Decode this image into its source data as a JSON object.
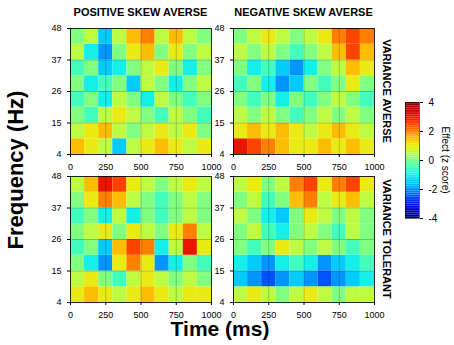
{
  "chart_data": {
    "type": "heatmap",
    "x_label": "Time (ms)",
    "y_label": "Frequency (Hz)",
    "columns": [
      "POSITIVE SKEW AVERSE",
      "NEGATIVE SKEW AVERSE"
    ],
    "rows": [
      "VARIANCE AVERSE",
      "VARIANCE TOLERANT"
    ],
    "xlim": [
      0,
      1000
    ],
    "xticks": [
      0,
      250,
      500,
      750,
      1000
    ],
    "ylim": [
      4,
      48
    ],
    "yticks": [
      4,
      15,
      26,
      37,
      48
    ],
    "grid": true,
    "color": "jet",
    "time_bins": [
      0,
      100,
      200,
      300,
      400,
      500,
      600,
      700,
      800,
      900,
      1000
    ],
    "frequency_bins": [
      4,
      9.5,
      15,
      20.5,
      26,
      31.5,
      37,
      42.5,
      48
    ],
    "colorbar": {
      "label": "Effect (z score)",
      "range": [
        -4,
        4
      ],
      "ticks": [
        4,
        2,
        0,
        -2,
        -4
      ]
    },
    "panels": [
      {
        "row": "VARIANCE AVERSE",
        "column": "POSITIVE SKEW AVERSE",
        "cells": [
          [
            1.5,
            1,
            0.5,
            -1.5,
            0.5,
            1,
            1.5,
            1,
            0.5,
            1
          ],
          [
            0.5,
            1,
            1.5,
            0.5,
            0,
            0.5,
            1,
            0.5,
            1,
            0
          ],
          [
            0,
            -0.5,
            0.5,
            1,
            0.5,
            0,
            -0.5,
            0.5,
            0,
            -0.5
          ],
          [
            -0.5,
            0,
            -1,
            0.5,
            0,
            -1,
            0.5,
            0,
            -0.5,
            0
          ],
          [
            0,
            -1,
            -0.5,
            0,
            -1.5,
            0.5,
            0,
            -1,
            0,
            0.5
          ],
          [
            -0.5,
            0,
            -1.5,
            -1,
            0,
            0.5,
            1,
            0,
            -1,
            0
          ],
          [
            0.5,
            -1,
            -2,
            0,
            1,
            1.5,
            0,
            1,
            0,
            0.5
          ],
          [
            0,
            0.5,
            -1.5,
            0.5,
            1.5,
            2,
            0.5,
            1.5,
            0.5,
            0
          ]
        ]
      },
      {
        "row": "VARIANCE AVERSE",
        "column": "NEGATIVE SKEW AVERSE",
        "cells": [
          [
            3,
            2.5,
            2,
            1.5,
            1,
            1,
            1.5,
            1,
            1.5,
            1
          ],
          [
            1,
            1.5,
            1,
            1.5,
            1,
            0.5,
            1,
            1.5,
            1,
            0.5
          ],
          [
            0.5,
            0,
            0.5,
            0,
            -0.5,
            0,
            0.5,
            0,
            0.5,
            0
          ],
          [
            0,
            -0.5,
            0,
            -1,
            0,
            -0.5,
            0,
            0.5,
            0,
            -0.5
          ],
          [
            -0.5,
            0,
            -1,
            -2,
            -1.5,
            0,
            -0.5,
            0,
            1,
            0
          ],
          [
            0,
            -1,
            -0.5,
            -1.5,
            -2,
            -1,
            0,
            0.5,
            1.5,
            1
          ],
          [
            0.5,
            0,
            0.5,
            0,
            -0.5,
            0,
            0.5,
            1.5,
            2.5,
            1.5
          ],
          [
            0,
            0.5,
            1,
            0.5,
            0,
            0.5,
            1,
            2,
            2.5,
            2
          ]
        ]
      },
      {
        "row": "VARIANCE TOLERANT",
        "column": "POSITIVE SKEW AVERSE",
        "cells": [
          [
            1,
            1.5,
            1,
            0.5,
            1,
            1.5,
            1,
            0.5,
            1,
            1
          ],
          [
            0.5,
            1,
            0,
            -0.5,
            0.5,
            1,
            0.5,
            0,
            0.5,
            0
          ],
          [
            0,
            -1,
            -2,
            1,
            2,
            1,
            -2,
            -1,
            0,
            -0.5
          ],
          [
            -0.5,
            0,
            -1.5,
            1.5,
            2.5,
            2,
            -1,
            0.5,
            3,
            1
          ],
          [
            0,
            0.5,
            1,
            0,
            1,
            0.5,
            0,
            1,
            2,
            0.5
          ],
          [
            -0.5,
            0,
            -1,
            0.5,
            -1,
            0,
            -0.5,
            0,
            0.5,
            0
          ],
          [
            0,
            1,
            2,
            1.5,
            0.5,
            0,
            -0.5,
            0,
            0.5,
            0
          ],
          [
            0.5,
            1.5,
            3,
            2.5,
            1,
            0.5,
            0,
            0.5,
            1,
            0.5
          ]
        ]
      },
      {
        "row": "VARIANCE TOLERANT",
        "column": "NEGATIVE SKEW AVERSE",
        "cells": [
          [
            0.5,
            1,
            0.5,
            0,
            0.5,
            1,
            0.5,
            0,
            0.5,
            0.5
          ],
          [
            -1.5,
            -2,
            -2.5,
            -2,
            -1.5,
            -2,
            -2.5,
            -2,
            -1.5,
            -1
          ],
          [
            -1,
            -1.5,
            -2,
            -1,
            -0.5,
            -1,
            -2,
            -1.5,
            -1,
            -0.5
          ],
          [
            0,
            -0.5,
            0,
            1,
            0.5,
            0,
            0.5,
            0,
            -0.5,
            0
          ],
          [
            0,
            0.5,
            -0.5,
            -1,
            0,
            0.5,
            0,
            -0.5,
            0.5,
            0
          ],
          [
            0.5,
            0,
            -1,
            -1.5,
            0,
            1,
            0.5,
            0,
            0.5,
            0
          ],
          [
            0,
            0.5,
            -0.5,
            0,
            1.5,
            2,
            0.5,
            1,
            1.5,
            0.5
          ],
          [
            0.5,
            1,
            0,
            0.5,
            2,
            2.5,
            1,
            2,
            2.5,
            1
          ]
        ]
      }
    ]
  }
}
